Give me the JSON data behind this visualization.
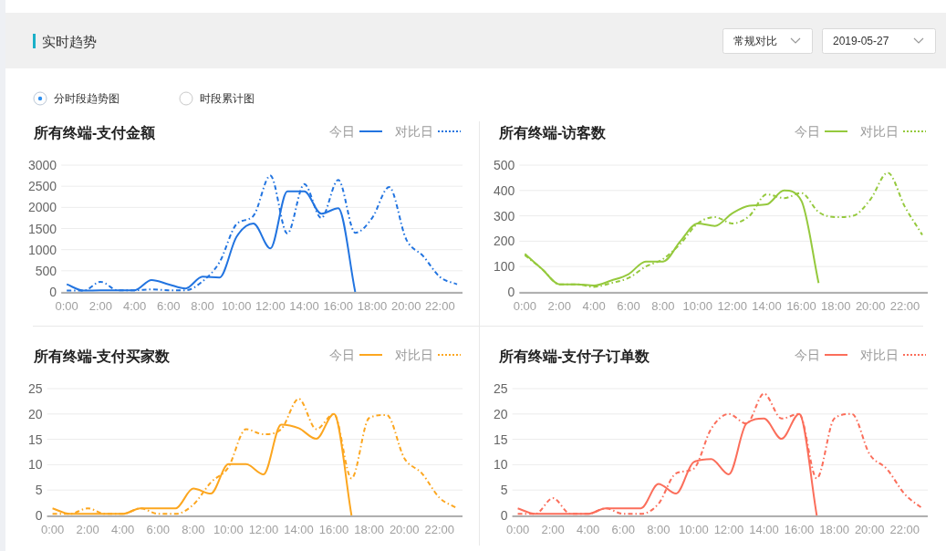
{
  "chart_data": [
    {
      "type": "other",
      "title": "实时趋势",
      "annotations": [
        "常规对比",
        "2019-05-27",
        "分时段趋势图",
        "时段累计图"
      ]
    },
    {
      "type": "line",
      "title": "所有终端-支付金额",
      "legend": "top right",
      "grid": "y",
      "categories": [
        "0:00",
        null,
        "2:00",
        null,
        "4:00",
        null,
        "6:00",
        null,
        "8:00",
        null,
        "10:00",
        null,
        "12:00",
        null,
        "14:00",
        null,
        "16:00",
        null,
        "18:00",
        null,
        "20:00",
        null,
        "22:00",
        null
      ],
      "ylim": [
        0,
        3000
      ],
      "yticks": [
        0,
        500,
        1000,
        1500,
        2000,
        2500,
        3000
      ],
      "series": [
        {
          "name": "今日",
          "color": "#2274e0",
          "line_style": "solid",
          "values": [
            180,
            30,
            40,
            40,
            40,
            280,
            180,
            80,
            360,
            340,
            1300,
            1620,
            1030,
            2380,
            2380,
            1850,
            1980,
            0,
            null,
            null,
            null,
            null,
            null,
            null
          ]
        },
        {
          "name": "对比日",
          "color": "#2274e0",
          "line_style": "dotted",
          "values": [
            30,
            30,
            240,
            40,
            40,
            60,
            40,
            40,
            250,
            700,
            1600,
            1800,
            2750,
            1380,
            2550,
            1750,
            2650,
            1400,
            1750,
            2480,
            1250,
            850,
            350,
            180
          ]
        }
      ]
    },
    {
      "type": "line",
      "title": "所有终端-访客数",
      "legend": "top right",
      "grid": "y",
      "categories": [
        "0:00",
        null,
        "2:00",
        null,
        "4:00",
        null,
        "6:00",
        null,
        "8:00",
        null,
        "10:00",
        null,
        "12:00",
        null,
        "14:00",
        null,
        "16:00",
        null,
        "18:00",
        null,
        "20:00",
        null,
        "22:00",
        null
      ],
      "ylim": [
        0,
        500
      ],
      "yticks": [
        0,
        100,
        200,
        300,
        400,
        500
      ],
      "series": [
        {
          "name": "今日",
          "color": "#95c93d",
          "line_style": "solid",
          "values": [
            150,
            90,
            30,
            30,
            25,
            45,
            70,
            120,
            120,
            200,
            270,
            260,
            310,
            340,
            345,
            400,
            360,
            35,
            null,
            null,
            null,
            null,
            null,
            null
          ]
        },
        {
          "name": "对比日",
          "color": "#95c93d",
          "line_style": "dotted",
          "values": [
            145,
            90,
            30,
            30,
            20,
            35,
            55,
            100,
            130,
            190,
            270,
            295,
            270,
            300,
            385,
            370,
            390,
            315,
            295,
            300,
            365,
            470,
            335,
            225
          ]
        }
      ]
    },
    {
      "type": "line",
      "title": "所有终端-支付买家数",
      "legend": "top right",
      "grid": "y",
      "categories": [
        "0:00",
        null,
        "2:00",
        null,
        "4:00",
        null,
        "6:00",
        null,
        "8:00",
        null,
        "10:00",
        null,
        "12:00",
        null,
        "14:00",
        null,
        "16:00",
        null,
        "18:00",
        null,
        "20:00",
        null,
        "22:00",
        null
      ],
      "ylim": [
        0,
        25
      ],
      "yticks": [
        0,
        5,
        10,
        15,
        20,
        25
      ],
      "series": [
        {
          "name": "今日",
          "color": "#fca61f",
          "line_style": "solid",
          "values": [
            1.4,
            0.3,
            0.3,
            0.3,
            0.3,
            1.4,
            1.4,
            1.4,
            5.3,
            4.3,
            10.1,
            10.1,
            8.1,
            17.9,
            17.2,
            15.1,
            20,
            0,
            null,
            null,
            null,
            null,
            null,
            null
          ]
        },
        {
          "name": "对比日",
          "color": "#fca61f",
          "line_style": "dotted",
          "values": [
            0.3,
            0.3,
            1.4,
            0.3,
            0.3,
            1.4,
            0.3,
            0.3,
            2.1,
            6.5,
            9.5,
            17,
            16,
            17,
            23,
            17,
            20,
            7.3,
            19.2,
            19.8,
            11.3,
            8.3,
            3.5,
            1.4
          ]
        }
      ]
    },
    {
      "type": "line",
      "title": "所有终端-支付子订单数",
      "legend": "top right",
      "grid": "y",
      "categories": [
        "0:00",
        null,
        "2:00",
        null,
        "4:00",
        null,
        "6:00",
        null,
        "8:00",
        null,
        "10:00",
        null,
        "12:00",
        null,
        "14:00",
        null,
        "16:00",
        null,
        "18:00",
        null,
        "20:00",
        null,
        "22:00",
        null
      ],
      "ylim": [
        0,
        25
      ],
      "yticks": [
        0,
        5,
        10,
        15,
        20,
        25
      ],
      "series": [
        {
          "name": "今日",
          "color": "#fb6e5b",
          "line_style": "solid",
          "values": [
            1.4,
            0.3,
            0.3,
            0.3,
            0.3,
            1.4,
            1.4,
            1.4,
            6.2,
            4.3,
            10.5,
            11.1,
            8.1,
            18.1,
            19.1,
            15.1,
            20,
            0,
            null,
            null,
            null,
            null,
            null,
            null
          ]
        },
        {
          "name": "对比日",
          "color": "#fb6e5b",
          "line_style": "dotted",
          "values": [
            0.3,
            0.3,
            3.4,
            0.3,
            0.3,
            1.4,
            0.3,
            0.3,
            2.3,
            8.3,
            9.2,
            17.1,
            20,
            18.1,
            24,
            19.1,
            20,
            7.3,
            19.1,
            20,
            12.1,
            9.1,
            4.2,
            1.4
          ]
        }
      ]
    }
  ]
}
